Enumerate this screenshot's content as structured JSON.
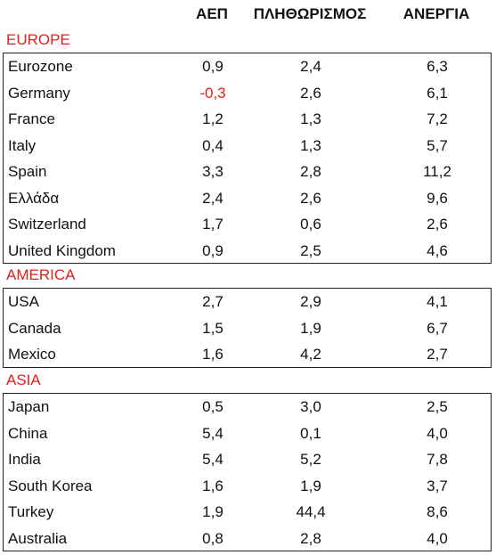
{
  "headers": {
    "gdp": "ΑΕΠ",
    "inflation": "ΠΛΗΘΩΡΙΣΜΟΣ",
    "unemployment": "ΑΝΕΡΓΙΑ"
  },
  "colors": {
    "region_label": "#e0201e",
    "negative_value": "#e0201e",
    "text": "#111111",
    "border": "#222222"
  },
  "regions": [
    {
      "label": "EUROPE",
      "rows": [
        {
          "name": "Eurozone",
          "gdp": "0,9",
          "inflation": "2,4",
          "unemployment": "6,3"
        },
        {
          "name": "Germany",
          "gdp": "-0,3",
          "inflation": "2,6",
          "unemployment": "6,1"
        },
        {
          "name": "France",
          "gdp": "1,2",
          "inflation": "1,3",
          "unemployment": "7,2"
        },
        {
          "name": "Italy",
          "gdp": "0,4",
          "inflation": "1,3",
          "unemployment": "5,7"
        },
        {
          "name": "Spain",
          "gdp": "3,3",
          "inflation": "2,8",
          "unemployment": "11,2"
        },
        {
          "name": "Ελλάδα",
          "gdp": "2,4",
          "inflation": "2,6",
          "unemployment": "9,6"
        },
        {
          "name": "Switzerland",
          "gdp": "1,7",
          "inflation": "0,6",
          "unemployment": "2,6"
        },
        {
          "name": "United Kingdom",
          "gdp": "0,9",
          "inflation": "2,5",
          "unemployment": "4,6"
        }
      ]
    },
    {
      "label": "AMERICA",
      "rows": [
        {
          "name": "USA",
          "gdp": "2,7",
          "inflation": "2,9",
          "unemployment": "4,1"
        },
        {
          "name": "Canada",
          "gdp": "1,5",
          "inflation": "1,9",
          "unemployment": "6,7"
        },
        {
          "name": "Mexico",
          "gdp": "1,6",
          "inflation": "4,2",
          "unemployment": "2,7"
        }
      ]
    },
    {
      "label": "ASIA",
      "rows": [
        {
          "name": "Japan",
          "gdp": "0,5",
          "inflation": "3,0",
          "unemployment": "2,5"
        },
        {
          "name": "China",
          "gdp": "5,4",
          "inflation": "0,1",
          "unemployment": "4,0"
        },
        {
          "name": "India",
          "gdp": "5,4",
          "inflation": "5,2",
          "unemployment": "7,8"
        },
        {
          "name": "South Korea",
          "gdp": "1,6",
          "inflation": "1,9",
          "unemployment": "3,7"
        },
        {
          "name": "Turkey",
          "gdp": "1,9",
          "inflation": "44,4",
          "unemployment": "8,6"
        },
        {
          "name": "Australia",
          "gdp": "0,8",
          "inflation": "2,8",
          "unemployment": "4,0"
        }
      ]
    }
  ]
}
